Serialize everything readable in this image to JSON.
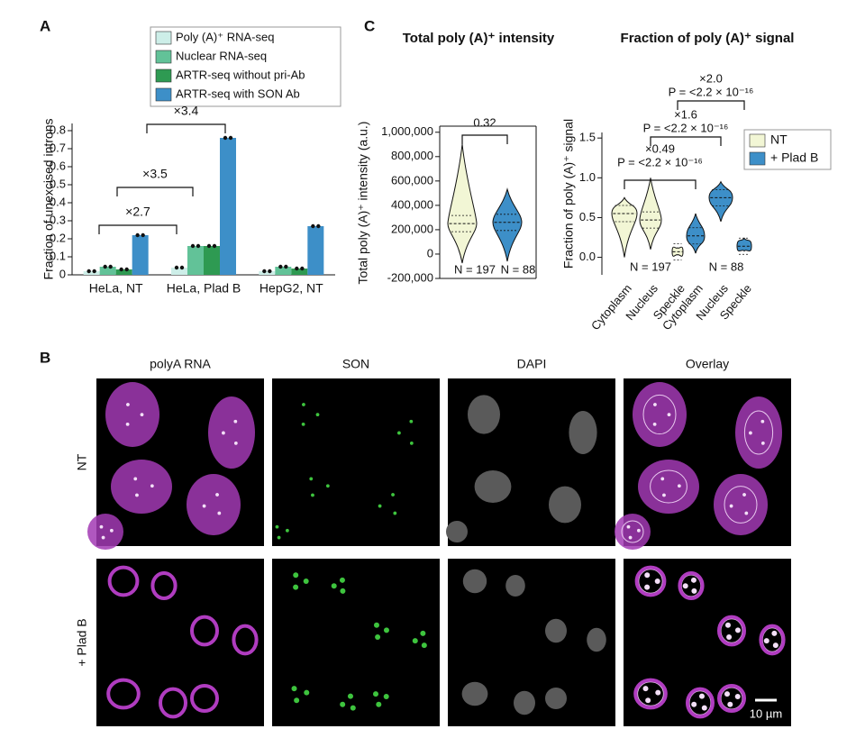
{
  "panels": {
    "a": "A",
    "b": "B",
    "c": "C"
  },
  "chart_data": [
    {
      "type": "bar",
      "ylabel": "Fraction of unexcised introns",
      "categories": [
        "HeLa, NT",
        "HeLa, Plad B",
        "HepG2, NT"
      ],
      "series": [
        {
          "name": "Poly (A)⁺ RNA-seq",
          "color": "#cdeee8",
          "values": [
            0.02,
            0.04,
            0.02
          ]
        },
        {
          "name": "Nuclear RNA-seq",
          "color": "#62c298",
          "values": [
            0.045,
            0.16,
            0.045
          ]
        },
        {
          "name": "ARTR-seq without pri-Ab",
          "color": "#2e9a52",
          "values": [
            0.03,
            0.16,
            0.035
          ]
        },
        {
          "name": "ARTR-seq with SON Ab",
          "color": "#3d8fc8",
          "values": [
            0.22,
            0.76,
            0.27
          ]
        }
      ],
      "ylim": [
        0,
        0.84
      ],
      "yticks": [
        0,
        0.1,
        0.2,
        0.3,
        0.4,
        0.5,
        0.6,
        0.7,
        0.8
      ],
      "legend": "upper left",
      "annotations": [
        "×2.7",
        "×3.5",
        "×3.4"
      ]
    },
    {
      "type": "violin",
      "title": "Total poly (A)⁺ intensity",
      "ylabel": "Total poly (A)⁺ intensity (a.u.)",
      "values": [
        250000,
        260000
      ],
      "colors": [
        "#f2f6d5",
        "#3d8fc8"
      ],
      "ylim": [
        -200000,
        1050000
      ],
      "yticks": [
        {
          "value": -200000,
          "label": "-200,000"
        },
        0,
        {
          "value": 200000,
          "label": "200,000"
        },
        {
          "value": 400000,
          "label": "400,000"
        },
        {
          "value": 600000,
          "label": "600,000"
        },
        {
          "value": 800000,
          "label": "800,000"
        },
        {
          "value": 1000000,
          "label": "1,000,000"
        }
      ],
      "annotations": [
        "0.32",
        "N = 197",
        "N = 88"
      ]
    },
    {
      "type": "violin",
      "title": "Fraction of poly (A)⁺ signal",
      "ylabel": "Fraction of poly (A)⁺ signal",
      "categories": [
        "Cytoplasm",
        "Nucleus",
        "Speckle",
        "Cytoplasm",
        "Nucleus",
        "Speckle"
      ],
      "series": [
        {
          "name": "NT",
          "color": "#f2f6d5",
          "values": [
            0.55,
            0.47,
            0.07,
            null,
            null,
            null
          ]
        },
        {
          "name": "+ Plad B",
          "color": "#3d8fc8",
          "values": [
            null,
            null,
            null,
            0.27,
            0.75,
            0.14
          ]
        }
      ],
      "ylim": [
        -0.22,
        1.57
      ],
      "yticks": [
        {
          "value": 0,
          "label": "0.0"
        },
        0.5,
        {
          "value": 1,
          "label": "1.0"
        },
        1.5
      ],
      "legend": "upper right",
      "annotations": [
        "×0.49",
        "P = <2.2 × 10⁻¹⁶",
        "×1.6",
        "P = <2.2 × 10⁻¹⁶",
        "×2.0",
        "P = <2.2 × 10⁻¹⁶",
        "N = 197",
        "N = 88"
      ]
    }
  ],
  "figure_b": {
    "columns": [
      "polyA RNA",
      "SON",
      "DAPI",
      "Overlay"
    ],
    "rows": [
      "NT",
      "+ Plad B"
    ],
    "scale_bar": "10 µm"
  }
}
